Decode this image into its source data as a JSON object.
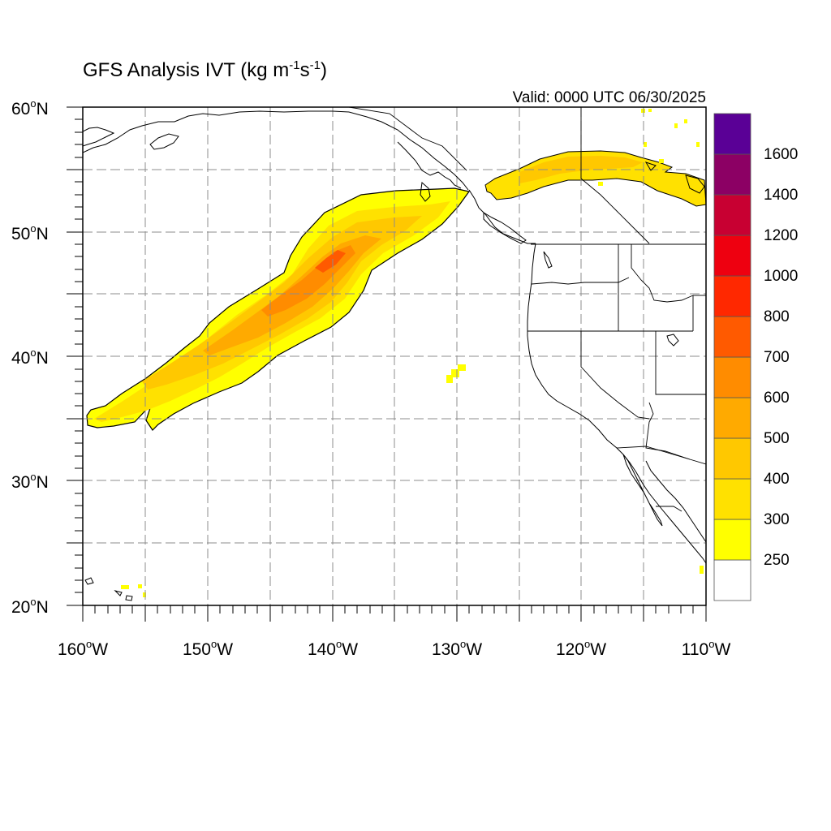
{
  "title": {
    "prefix": "GFS Analysis IVT (kg m",
    "sup1": "-1",
    "mid": "s",
    "sup2": "-1",
    "suffix": ")"
  },
  "valid_text": "Valid: 0000 UTC 06/30/2025",
  "map": {
    "lon_range": [
      -160,
      -110
    ],
    "lat_range": [
      20,
      60
    ],
    "grid_lines": "dashed",
    "lat_labels": [
      {
        "num": "60",
        "deg": "o",
        "hemi": "N",
        "value": 60
      },
      {
        "num": "50",
        "deg": "o",
        "hemi": "N",
        "value": 50
      },
      {
        "num": "40",
        "deg": "o",
        "hemi": "N",
        "value": 40
      },
      {
        "num": "30",
        "deg": "o",
        "hemi": "N",
        "value": 30
      },
      {
        "num": "20",
        "deg": "o",
        "hemi": "N",
        "value": 20
      }
    ],
    "lon_labels": [
      {
        "num": "160",
        "deg": "o",
        "hemi": "W",
        "value": -160
      },
      {
        "num": "150",
        "deg": "o",
        "hemi": "W",
        "value": -150
      },
      {
        "num": "140",
        "deg": "o",
        "hemi": "W",
        "value": -140
      },
      {
        "num": "130",
        "deg": "o",
        "hemi": "W",
        "value": -130
      },
      {
        "num": "120",
        "deg": "o",
        "hemi": "W",
        "value": -120
      },
      {
        "num": "110",
        "deg": "o",
        "hemi": "W",
        "value": -110
      }
    ]
  },
  "colorbar": {
    "labels": [
      "250",
      "300",
      "400",
      "500",
      "600",
      "700",
      "800",
      "1000",
      "1200",
      "1400",
      "1600"
    ],
    "colors": [
      "#ffffff",
      "#ffff00",
      "#ffe100",
      "#ffc800",
      "#ffaa00",
      "#ff8c00",
      "#ff5a00",
      "#ff2800",
      "#ee0010",
      "#c80032",
      "#8c0064",
      "#5a0096"
    ]
  }
}
